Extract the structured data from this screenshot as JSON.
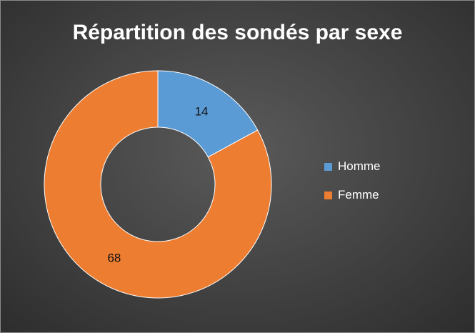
{
  "chart_data": {
    "type": "pie",
    "title": "Répartition des sondés par sexe",
    "categories": [
      "Homme",
      "Femme"
    ],
    "values": [
      14,
      68
    ],
    "colors": [
      "#5b9bd5",
      "#ed7d31"
    ],
    "hole": "donut",
    "data_labels": [
      "14",
      "68"
    ],
    "legend": {
      "position": "right",
      "items": [
        {
          "label": "Homme",
          "color": "#5b9bd5"
        },
        {
          "label": "Femme",
          "color": "#ed7d31"
        }
      ]
    }
  }
}
